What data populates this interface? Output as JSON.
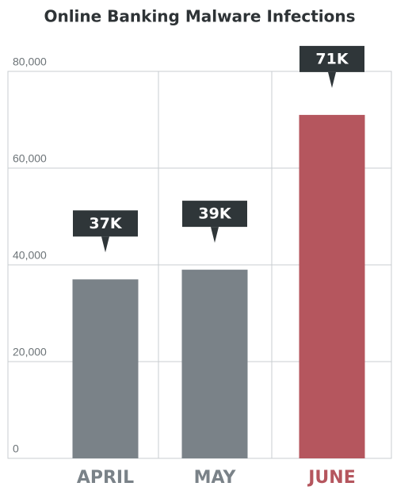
{
  "chart_data": {
    "type": "bar",
    "title": "Online Banking Malware Infections",
    "categories": [
      "APRIL",
      "MAY",
      "JUNE"
    ],
    "values": [
      37000,
      39000,
      71000
    ],
    "value_labels": [
      "37K",
      "39K",
      "71K"
    ],
    "colors": [
      "#7a8288",
      "#7a8288",
      "#b5565e"
    ],
    "ylim": [
      0,
      80000
    ],
    "yticks": [
      0,
      {
        "value": 20000,
        "label": "20,000"
      },
      {
        "value": 40000,
        "label": "40,000"
      },
      {
        "value": 60000,
        "label": "60,000"
      },
      {
        "value": 80000,
        "label": "80,000"
      }
    ],
    "grid": true
  }
}
